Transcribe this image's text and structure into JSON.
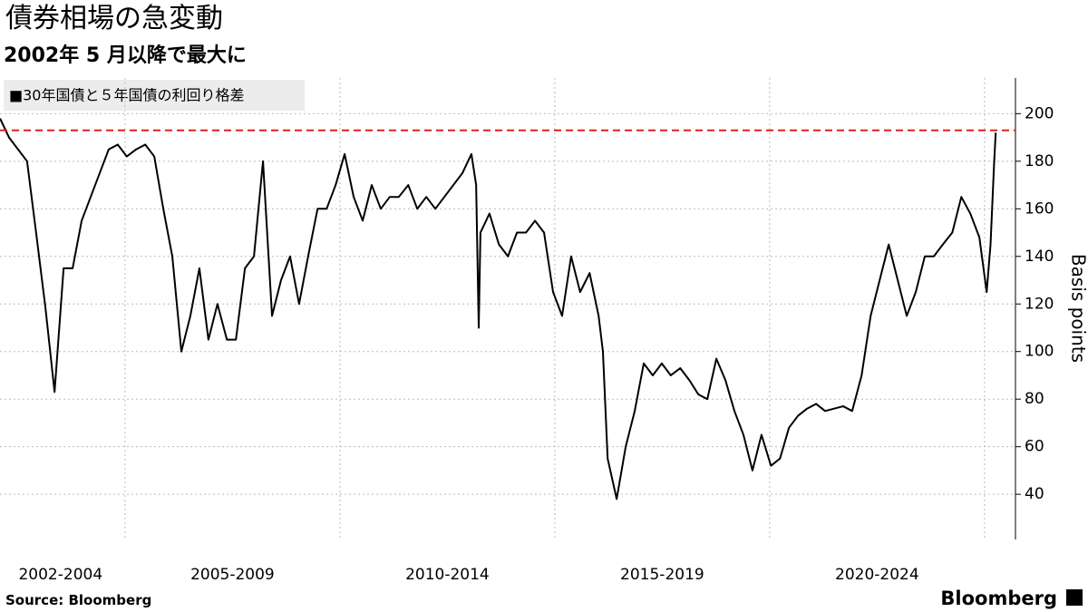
{
  "chart_data": {
    "type": "line",
    "title": "債券相場の急変動",
    "subtitle": "2002年 5 月以降で最大に",
    "legend_label": "■30年国債と５年国債の利回り格差",
    "y_axis_label": "Basis points",
    "source": "Source:  Bloomberg",
    "brand": "Bloomberg",
    "grid": true,
    "reference_line": {
      "value": 193,
      "color": "#e02020"
    },
    "xlim": [
      2002.09,
      2025.72
    ],
    "ylim": [
      21,
      215
    ],
    "yticks": [
      40,
      60,
      80,
      100,
      120,
      140,
      160,
      180,
      200
    ],
    "xgrid": [
      2005,
      2010,
      2015,
      2020,
      2025
    ],
    "xticks": [
      {
        "value": 2003.5,
        "label": "2002-2004"
      },
      {
        "value": 2007.5,
        "label": "2005-2009"
      },
      {
        "value": 2012.5,
        "label": "2010-2014"
      },
      {
        "value": 2017.5,
        "label": "2015-2019"
      },
      {
        "value": 2022.5,
        "label": "2020-2024"
      }
    ],
    "x": [
      2002.09,
      2002.3,
      2002.51,
      2002.72,
      2002.93,
      2003.15,
      2003.36,
      2003.57,
      2003.78,
      2003.99,
      2004.2,
      2004.41,
      2004.62,
      2004.83,
      2005.04,
      2005.26,
      2005.47,
      2005.68,
      2005.89,
      2006.1,
      2006.31,
      2006.52,
      2006.73,
      2006.94,
      2007.15,
      2007.37,
      2007.58,
      2007.79,
      2008.0,
      2008.21,
      2008.42,
      2008.63,
      2008.84,
      2009.05,
      2009.26,
      2009.48,
      2009.69,
      2009.9,
      2010.11,
      2010.32,
      2010.53,
      2010.74,
      2010.95,
      2011.16,
      2011.37,
      2011.59,
      2011.8,
      2012.01,
      2012.22,
      2012.43,
      2012.64,
      2012.85,
      2013.06,
      2013.17,
      2013.23,
      2013.27,
      2013.48,
      2013.7,
      2013.91,
      2014.12,
      2014.33,
      2014.54,
      2014.75,
      2014.96,
      2015.17,
      2015.38,
      2015.59,
      2015.81,
      2016.02,
      2016.12,
      2016.23,
      2016.44,
      2016.65,
      2016.86,
      2017.07,
      2017.28,
      2017.49,
      2017.7,
      2017.92,
      2018.13,
      2018.34,
      2018.55,
      2018.76,
      2018.97,
      2019.18,
      2019.39,
      2019.6,
      2019.81,
      2020.03,
      2020.24,
      2020.45,
      2020.66,
      2020.87,
      2021.08,
      2021.29,
      2021.5,
      2021.71,
      2021.92,
      2022.14,
      2022.35,
      2022.56,
      2022.77,
      2022.98,
      2023.19,
      2023.4,
      2023.61,
      2023.82,
      2024.03,
      2024.25,
      2024.46,
      2024.67,
      2024.88,
      2025.05,
      2025.14,
      2025.22,
      2025.26
    ],
    "series": [
      {
        "name": "30年国債と５年国債の利回り格差",
        "color": "#000000",
        "values": [
          198,
          190,
          185,
          180,
          150,
          118,
          83,
          135,
          135,
          155,
          165,
          175,
          185,
          187,
          182,
          185,
          187,
          182,
          160,
          140,
          100,
          115,
          135,
          105,
          120,
          105,
          105,
          135,
          140,
          180,
          115,
          130,
          140,
          120,
          140,
          160,
          160,
          170,
          183,
          165,
          155,
          170,
          160,
          165,
          165,
          170,
          160,
          165,
          160,
          165,
          170,
          175,
          183,
          170,
          110,
          150,
          158,
          145,
          140,
          150,
          150,
          155,
          150,
          125,
          115,
          140,
          125,
          133,
          115,
          100,
          55,
          38,
          60,
          75,
          95,
          90,
          95,
          90,
          93,
          88,
          82,
          80,
          97,
          88,
          75,
          65,
          50,
          65,
          52,
          55,
          68,
          73,
          76,
          78,
          75,
          76,
          77,
          75,
          90,
          115,
          130,
          145,
          130,
          115,
          125,
          140,
          140,
          145,
          150,
          165,
          158,
          148,
          125,
          145,
          178,
          192
        ]
      }
    ]
  }
}
